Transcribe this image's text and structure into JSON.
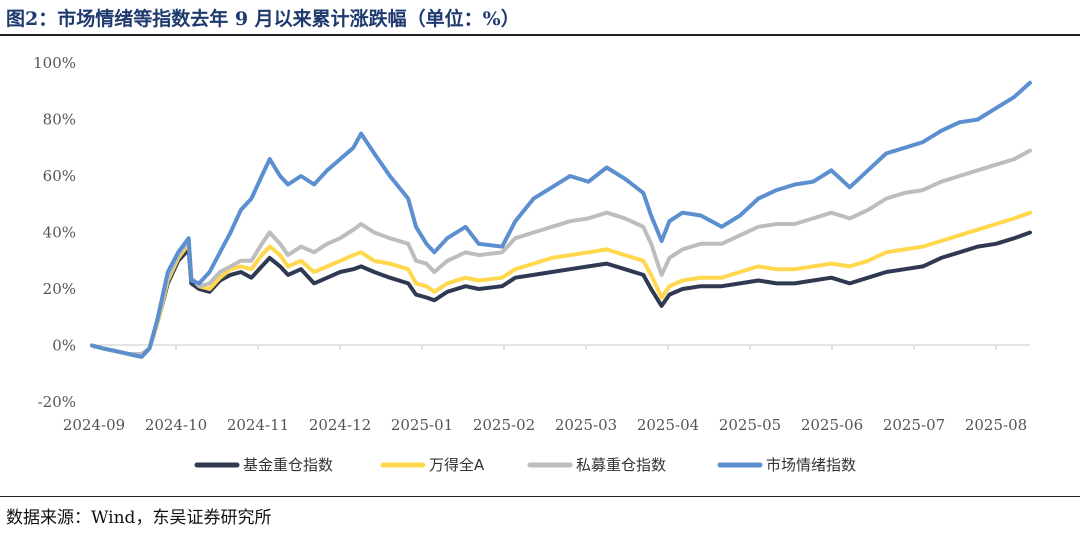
{
  "header": {
    "title": "图2：市场情绪等指数去年 9 月以来累计涨跌幅（单位：%）"
  },
  "footer": {
    "source": "数据来源：Wind，东吴证券研究所"
  },
  "chart_data": {
    "type": "line",
    "title": "图2：市场情绪等指数去年 9 月以来累计涨跌幅（单位：%）",
    "xlabel": "",
    "ylabel": "",
    "ylim": [
      -20,
      100
    ],
    "y_ticks": [
      -20,
      0,
      20,
      40,
      60,
      80,
      100
    ],
    "y_tick_labels": [
      "-20%",
      "0%",
      "20%",
      "40%",
      "60%",
      "80%",
      "100%"
    ],
    "x_ticks": [
      "2024-09",
      "2024-10",
      "2024-11",
      "2024-12",
      "2025-01",
      "2025-02",
      "2025-03",
      "2025-04",
      "2025-05",
      "2025-06",
      "2025-07",
      "2025-08"
    ],
    "x_range": [
      "2024-09-01",
      "2025-08-26"
    ],
    "grid": false,
    "legend_position": "bottom",
    "series": [
      {
        "name": "基金重仓指数",
        "color": "#2f3a52",
        "points": [
          [
            "2024-09-01",
            0
          ],
          [
            "2024-09-05",
            -1
          ],
          [
            "2024-09-10",
            -2
          ],
          [
            "2024-09-15",
            -3
          ],
          [
            "2024-09-20",
            -4
          ],
          [
            "2024-09-23",
            -1
          ],
          [
            "2024-09-26",
            8
          ],
          [
            "2024-09-30",
            22
          ],
          [
            "2024-10-04",
            30
          ],
          [
            "2024-10-08",
            34
          ],
          [
            "2024-10-09",
            22
          ],
          [
            "2024-10-12",
            20
          ],
          [
            "2024-10-16",
            19
          ],
          [
            "2024-10-20",
            23
          ],
          [
            "2024-10-24",
            25
          ],
          [
            "2024-10-28",
            26
          ],
          [
            "2024-11-01",
            24
          ],
          [
            "2024-11-05",
            28
          ],
          [
            "2024-11-08",
            31
          ],
          [
            "2024-11-12",
            28
          ],
          [
            "2024-11-15",
            25
          ],
          [
            "2024-11-20",
            27
          ],
          [
            "2024-11-25",
            22
          ],
          [
            "2024-11-30",
            24
          ],
          [
            "2024-12-05",
            26
          ],
          [
            "2024-12-10",
            27
          ],
          [
            "2024-12-13",
            28
          ],
          [
            "2024-12-18",
            26
          ],
          [
            "2024-12-24",
            24
          ],
          [
            "2024-12-31",
            22
          ],
          [
            "2025-01-03",
            18
          ],
          [
            "2025-01-07",
            17
          ],
          [
            "2025-01-10",
            16
          ],
          [
            "2025-01-15",
            19
          ],
          [
            "2025-01-22",
            21
          ],
          [
            "2025-01-27",
            20
          ],
          [
            "2025-02-05",
            21
          ],
          [
            "2025-02-10",
            24
          ],
          [
            "2025-02-17",
            25
          ],
          [
            "2025-02-24",
            26
          ],
          [
            "2025-03-03",
            27
          ],
          [
            "2025-03-10",
            28
          ],
          [
            "2025-03-17",
            29
          ],
          [
            "2025-03-24",
            27
          ],
          [
            "2025-03-31",
            25
          ],
          [
            "2025-04-03",
            20
          ],
          [
            "2025-04-07",
            14
          ],
          [
            "2025-04-10",
            18
          ],
          [
            "2025-04-15",
            20
          ],
          [
            "2025-04-22",
            21
          ],
          [
            "2025-04-30",
            21
          ],
          [
            "2025-05-07",
            22
          ],
          [
            "2025-05-14",
            23
          ],
          [
            "2025-05-21",
            22
          ],
          [
            "2025-05-28",
            22
          ],
          [
            "2025-06-04",
            23
          ],
          [
            "2025-06-11",
            24
          ],
          [
            "2025-06-18",
            22
          ],
          [
            "2025-06-25",
            24
          ],
          [
            "2025-07-02",
            26
          ],
          [
            "2025-07-09",
            27
          ],
          [
            "2025-07-16",
            28
          ],
          [
            "2025-07-23",
            31
          ],
          [
            "2025-07-30",
            33
          ],
          [
            "2025-08-06",
            35
          ],
          [
            "2025-08-13",
            36
          ],
          [
            "2025-08-20",
            38
          ],
          [
            "2025-08-26",
            40
          ]
        ]
      },
      {
        "name": "万得全A",
        "color": "#ffd84d",
        "points": [
          [
            "2024-09-01",
            0
          ],
          [
            "2024-09-05",
            -1
          ],
          [
            "2024-09-10",
            -2
          ],
          [
            "2024-09-15",
            -3
          ],
          [
            "2024-09-20",
            -3
          ],
          [
            "2024-09-23",
            -1
          ],
          [
            "2024-09-26",
            8
          ],
          [
            "2024-09-30",
            23
          ],
          [
            "2024-10-04",
            31
          ],
          [
            "2024-10-08",
            36
          ],
          [
            "2024-10-09",
            24
          ],
          [
            "2024-10-12",
            21
          ],
          [
            "2024-10-16",
            20
          ],
          [
            "2024-10-20",
            24
          ],
          [
            "2024-10-24",
            27
          ],
          [
            "2024-10-28",
            28
          ],
          [
            "2024-11-01",
            27
          ],
          [
            "2024-11-05",
            32
          ],
          [
            "2024-11-08",
            35
          ],
          [
            "2024-11-12",
            32
          ],
          [
            "2024-11-15",
            28
          ],
          [
            "2024-11-20",
            30
          ],
          [
            "2024-11-25",
            26
          ],
          [
            "2024-11-30",
            28
          ],
          [
            "2024-12-05",
            30
          ],
          [
            "2024-12-10",
            32
          ],
          [
            "2024-12-13",
            33
          ],
          [
            "2024-12-18",
            30
          ],
          [
            "2024-12-24",
            29
          ],
          [
            "2024-12-31",
            27
          ],
          [
            "2025-01-03",
            22
          ],
          [
            "2025-01-07",
            21
          ],
          [
            "2025-01-10",
            19
          ],
          [
            "2025-01-15",
            22
          ],
          [
            "2025-01-22",
            24
          ],
          [
            "2025-01-27",
            23
          ],
          [
            "2025-02-05",
            24
          ],
          [
            "2025-02-10",
            27
          ],
          [
            "2025-02-17",
            29
          ],
          [
            "2025-02-24",
            31
          ],
          [
            "2025-03-03",
            32
          ],
          [
            "2025-03-10",
            33
          ],
          [
            "2025-03-17",
            34
          ],
          [
            "2025-03-24",
            32
          ],
          [
            "2025-03-31",
            30
          ],
          [
            "2025-04-03",
            25
          ],
          [
            "2025-04-07",
            17
          ],
          [
            "2025-04-10",
            21
          ],
          [
            "2025-04-15",
            23
          ],
          [
            "2025-04-22",
            24
          ],
          [
            "2025-04-30",
            24
          ],
          [
            "2025-05-07",
            26
          ],
          [
            "2025-05-14",
            28
          ],
          [
            "2025-05-21",
            27
          ],
          [
            "2025-05-28",
            27
          ],
          [
            "2025-06-04",
            28
          ],
          [
            "2025-06-11",
            29
          ],
          [
            "2025-06-18",
            28
          ],
          [
            "2025-06-25",
            30
          ],
          [
            "2025-07-02",
            33
          ],
          [
            "2025-07-09",
            34
          ],
          [
            "2025-07-16",
            35
          ],
          [
            "2025-07-23",
            37
          ],
          [
            "2025-07-30",
            39
          ],
          [
            "2025-08-06",
            41
          ],
          [
            "2025-08-13",
            43
          ],
          [
            "2025-08-20",
            45
          ],
          [
            "2025-08-26",
            47
          ]
        ]
      },
      {
        "name": "私募重仓指数",
        "color": "#bdbdbd",
        "points": [
          [
            "2024-09-01",
            0
          ],
          [
            "2024-09-05",
            -1
          ],
          [
            "2024-09-10",
            -2
          ],
          [
            "2024-09-15",
            -3
          ],
          [
            "2024-09-20",
            -3
          ],
          [
            "2024-09-23",
            -1
          ],
          [
            "2024-09-26",
            9
          ],
          [
            "2024-09-30",
            24
          ],
          [
            "2024-10-04",
            32
          ],
          [
            "2024-10-08",
            37
          ],
          [
            "2024-10-09",
            24
          ],
          [
            "2024-10-12",
            21
          ],
          [
            "2024-10-16",
            22
          ],
          [
            "2024-10-20",
            26
          ],
          [
            "2024-10-24",
            28
          ],
          [
            "2024-10-28",
            30
          ],
          [
            "2024-11-01",
            30
          ],
          [
            "2024-11-05",
            36
          ],
          [
            "2024-11-08",
            40
          ],
          [
            "2024-11-12",
            36
          ],
          [
            "2024-11-15",
            32
          ],
          [
            "2024-11-20",
            35
          ],
          [
            "2024-11-25",
            33
          ],
          [
            "2024-11-30",
            36
          ],
          [
            "2024-12-05",
            38
          ],
          [
            "2024-12-10",
            41
          ],
          [
            "2024-12-13",
            43
          ],
          [
            "2024-12-18",
            40
          ],
          [
            "2024-12-24",
            38
          ],
          [
            "2024-12-31",
            36
          ],
          [
            "2025-01-03",
            30
          ],
          [
            "2025-01-07",
            29
          ],
          [
            "2025-01-10",
            26
          ],
          [
            "2025-01-15",
            30
          ],
          [
            "2025-01-22",
            33
          ],
          [
            "2025-01-27",
            32
          ],
          [
            "2025-02-05",
            33
          ],
          [
            "2025-02-10",
            38
          ],
          [
            "2025-02-17",
            40
          ],
          [
            "2025-02-24",
            42
          ],
          [
            "2025-03-03",
            44
          ],
          [
            "2025-03-10",
            45
          ],
          [
            "2025-03-17",
            47
          ],
          [
            "2025-03-24",
            45
          ],
          [
            "2025-03-31",
            42
          ],
          [
            "2025-04-03",
            36
          ],
          [
            "2025-04-07",
            25
          ],
          [
            "2025-04-10",
            31
          ],
          [
            "2025-04-15",
            34
          ],
          [
            "2025-04-22",
            36
          ],
          [
            "2025-04-30",
            36
          ],
          [
            "2025-05-07",
            39
          ],
          [
            "2025-05-14",
            42
          ],
          [
            "2025-05-21",
            43
          ],
          [
            "2025-05-28",
            43
          ],
          [
            "2025-06-04",
            45
          ],
          [
            "2025-06-11",
            47
          ],
          [
            "2025-06-18",
            45
          ],
          [
            "2025-06-25",
            48
          ],
          [
            "2025-07-02",
            52
          ],
          [
            "2025-07-09",
            54
          ],
          [
            "2025-07-16",
            55
          ],
          [
            "2025-07-23",
            58
          ],
          [
            "2025-07-30",
            60
          ],
          [
            "2025-08-06",
            62
          ],
          [
            "2025-08-13",
            64
          ],
          [
            "2025-08-20",
            66
          ],
          [
            "2025-08-26",
            69
          ]
        ]
      },
      {
        "name": "市场情绪指数",
        "color": "#5b8fcf",
        "points": [
          [
            "2024-09-01",
            0
          ],
          [
            "2024-09-05",
            -1
          ],
          [
            "2024-09-10",
            -2
          ],
          [
            "2024-09-15",
            -3
          ],
          [
            "2024-09-20",
            -4
          ],
          [
            "2024-09-23",
            -1
          ],
          [
            "2024-09-26",
            9
          ],
          [
            "2024-09-30",
            26
          ],
          [
            "2024-10-04",
            33
          ],
          [
            "2024-10-08",
            38
          ],
          [
            "2024-10-09",
            23
          ],
          [
            "2024-10-12",
            22
          ],
          [
            "2024-10-16",
            26
          ],
          [
            "2024-10-20",
            33
          ],
          [
            "2024-10-24",
            40
          ],
          [
            "2024-10-28",
            48
          ],
          [
            "2024-11-01",
            52
          ],
          [
            "2024-11-05",
            60
          ],
          [
            "2024-11-08",
            66
          ],
          [
            "2024-11-12",
            60
          ],
          [
            "2024-11-15",
            57
          ],
          [
            "2024-11-20",
            60
          ],
          [
            "2024-11-25",
            57
          ],
          [
            "2024-11-30",
            62
          ],
          [
            "2024-12-05",
            66
          ],
          [
            "2024-12-10",
            70
          ],
          [
            "2024-12-13",
            75
          ],
          [
            "2024-12-18",
            68
          ],
          [
            "2024-12-24",
            60
          ],
          [
            "2024-12-31",
            52
          ],
          [
            "2025-01-03",
            42
          ],
          [
            "2025-01-07",
            36
          ],
          [
            "2025-01-10",
            33
          ],
          [
            "2025-01-15",
            38
          ],
          [
            "2025-01-22",
            42
          ],
          [
            "2025-01-27",
            36
          ],
          [
            "2025-02-05",
            35
          ],
          [
            "2025-02-10",
            44
          ],
          [
            "2025-02-17",
            52
          ],
          [
            "2025-02-24",
            56
          ],
          [
            "2025-03-03",
            60
          ],
          [
            "2025-03-10",
            58
          ],
          [
            "2025-03-17",
            63
          ],
          [
            "2025-03-24",
            59
          ],
          [
            "2025-03-31",
            54
          ],
          [
            "2025-04-03",
            46
          ],
          [
            "2025-04-07",
            37
          ],
          [
            "2025-04-10",
            44
          ],
          [
            "2025-04-15",
            47
          ],
          [
            "2025-04-22",
            46
          ],
          [
            "2025-04-30",
            42
          ],
          [
            "2025-05-07",
            46
          ],
          [
            "2025-05-14",
            52
          ],
          [
            "2025-05-21",
            55
          ],
          [
            "2025-05-28",
            57
          ],
          [
            "2025-06-04",
            58
          ],
          [
            "2025-06-11",
            62
          ],
          [
            "2025-06-18",
            56
          ],
          [
            "2025-06-25",
            62
          ],
          [
            "2025-07-02",
            68
          ],
          [
            "2025-07-09",
            70
          ],
          [
            "2025-07-16",
            72
          ],
          [
            "2025-07-23",
            76
          ],
          [
            "2025-07-30",
            79
          ],
          [
            "2025-08-06",
            80
          ],
          [
            "2025-08-13",
            84
          ],
          [
            "2025-08-20",
            88
          ],
          [
            "2025-08-26",
            93
          ]
        ]
      }
    ]
  }
}
